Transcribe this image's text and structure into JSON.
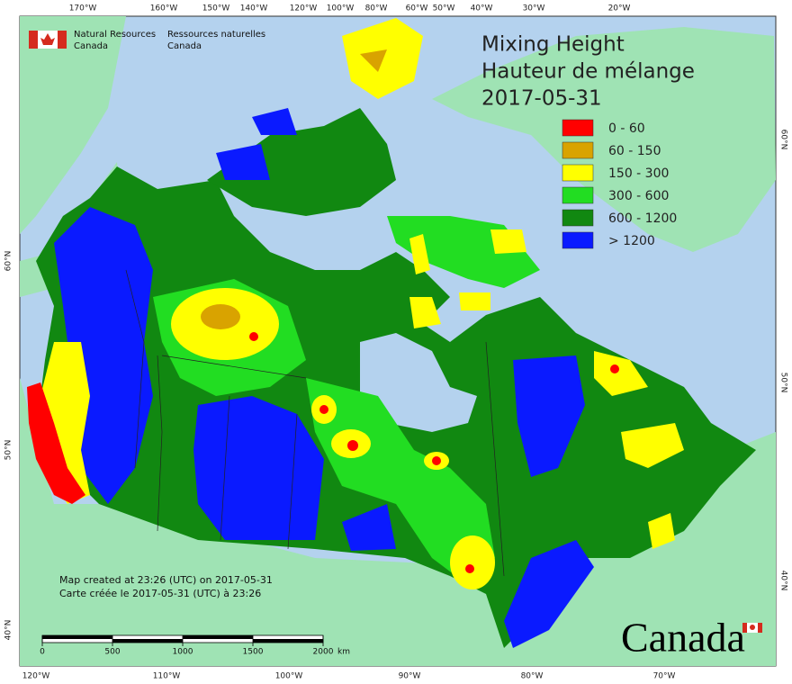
{
  "header": {
    "agency_en": [
      "Natural Resources",
      "Canada"
    ],
    "agency_fr": [
      "Ressources naturelles",
      "Canada"
    ]
  },
  "title": [
    "Mixing Height",
    "Hauteur de mélange",
    "2017-05-31"
  ],
  "legend": [
    {
      "label": "0 - 60",
      "color": "#ff0000"
    },
    {
      "label": "60 - 150",
      "color": "#d9a300"
    },
    {
      "label": "150 - 300",
      "color": "#ffff00"
    },
    {
      "label": "300 - 600",
      "color": "#22dd22"
    },
    {
      "label": "600 - 1200",
      "color": "#118811"
    },
    {
      "label": "> 1200",
      "color": "#0a1aff"
    }
  ],
  "graticule": {
    "top": [
      "170°W",
      "160°W",
      "150°W",
      "140°W",
      "120°W",
      "100°W",
      "80°W",
      "60°W",
      "50°W",
      "40°W",
      "30°W",
      "20°W"
    ],
    "bottom": [
      "120°W",
      "110°W",
      "100°W",
      "90°W",
      "80°W",
      "70°W"
    ],
    "left": [
      "60°N",
      "50°N",
      "40°N"
    ],
    "right": [
      "60°N",
      "50°N",
      "40°N"
    ]
  },
  "notes": [
    "Map created at 23:26 (UTC) on 2017-05-31",
    "Carte créée le 2017-05-31 (UTC) à 23:26"
  ],
  "scale_bar": {
    "ticks": [
      0,
      500,
      1000,
      1500,
      2000
    ],
    "unit": "km"
  },
  "wordmark": "Canada"
}
